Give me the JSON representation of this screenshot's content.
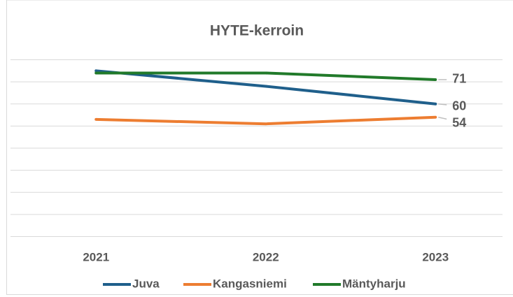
{
  "chart_data": {
    "type": "line",
    "title": "HYTE-kerroin",
    "categories": [
      "2021",
      "2022",
      "2023"
    ],
    "series": [
      {
        "name": "Juva",
        "color": "#1f5f8b",
        "values": [
          75,
          68,
          60
        ]
      },
      {
        "name": "Kangasniemi",
        "color": "#ed7d31",
        "values": [
          53,
          51,
          54
        ]
      },
      {
        "name": "Mäntyharju",
        "color": "#217a2a",
        "values": [
          74,
          74,
          71
        ]
      }
    ],
    "ylim": [
      0,
      80
    ],
    "yticks": [
      0,
      10,
      20,
      30,
      40,
      50,
      60,
      70,
      80
    ],
    "grid": true,
    "legend": "bottom"
  }
}
